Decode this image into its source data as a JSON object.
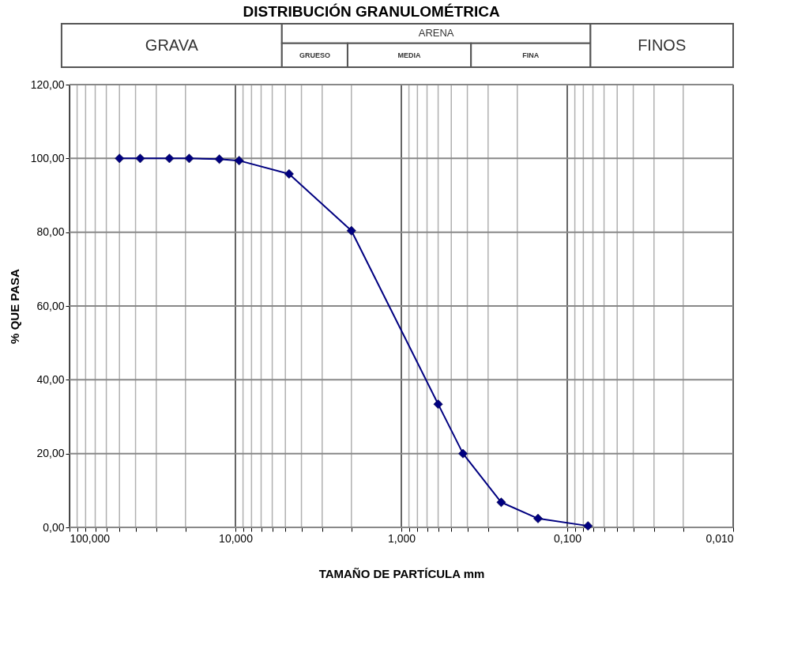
{
  "chart_data": {
    "type": "line",
    "title": "DISTRIBUCIÓN GRANULOMÉTRICA",
    "xlabel": "TAMAÑO DE PARTÍCULA mm",
    "ylabel": "% QUE PASA",
    "annotations": [
      "GRAVA",
      "ARENA",
      "GRUESO",
      "MEDIA",
      "FINA",
      "FINOS"
    ],
    "x": [
      50,
      37.5,
      25,
      19,
      12.5,
      9.5,
      4.75,
      2.0,
      0.6,
      0.425,
      0.25,
      0.15,
      0.075
    ],
    "series": [
      {
        "color": "#000080",
        "values": [
          100,
          100,
          100,
          100,
          99.8,
          99.4,
          95.8,
          80.4,
          33.4,
          20.0,
          6.8,
          2.4,
          0.4
        ]
      }
    ],
    "log": "x",
    "marker": "diamond",
    "line_style": "solid",
    "grid": true,
    "xlim": [
      100,
      0.01
    ],
    "xticks": [
      {
        "value": 100,
        "label": "100,000"
      },
      {
        "value": 90,
        "label": null
      },
      {
        "value": 80,
        "label": null
      },
      {
        "value": 70,
        "label": null
      },
      {
        "value": 60,
        "label": null
      },
      {
        "value": 50,
        "label": null
      },
      {
        "value": 40,
        "label": null
      },
      {
        "value": 30,
        "label": null
      },
      {
        "value": 20,
        "label": null
      },
      {
        "value": 10,
        "label": "10,000"
      },
      {
        "value": 9,
        "label": null
      },
      {
        "value": 8,
        "label": null
      },
      {
        "value": 7,
        "label": null
      },
      {
        "value": 6,
        "label": null
      },
      {
        "value": 5,
        "label": null
      },
      {
        "value": 4,
        "label": null
      },
      {
        "value": 3,
        "label": null
      },
      {
        "value": 2,
        "label": null
      },
      {
        "value": 1,
        "label": "1,000"
      },
      {
        "value": 0.9,
        "label": null
      },
      {
        "value": 0.8,
        "label": null
      },
      {
        "value": 0.7,
        "label": null
      },
      {
        "value": 0.6,
        "label": null
      },
      {
        "value": 0.5,
        "label": null
      },
      {
        "value": 0.4,
        "label": null
      },
      {
        "value": 0.3,
        "label": null
      },
      {
        "value": 0.2,
        "label": null
      },
      {
        "value": 0.1,
        "label": "0,100"
      },
      {
        "value": 0.09,
        "label": null
      },
      {
        "value": 0.08,
        "label": null
      },
      {
        "value": 0.07,
        "label": null
      },
      {
        "value": 0.06,
        "label": null
      },
      {
        "value": 0.05,
        "label": null
      },
      {
        "value": 0.04,
        "label": null
      },
      {
        "value": 0.03,
        "label": null
      },
      {
        "value": 0.02,
        "label": null
      },
      {
        "value": 0.01,
        "label": "0,010"
      }
    ],
    "ylim": [
      0,
      120
    ],
    "yticks": [
      {
        "value": 0,
        "label": "0,00"
      },
      {
        "value": 20,
        "label": "20,00"
      },
      {
        "value": 40,
        "label": "40,00"
      },
      {
        "value": 60,
        "label": "60,00"
      },
      {
        "value": 80,
        "label": "80,00"
      },
      {
        "value": 100,
        "label": "100,00"
      },
      {
        "value": 120,
        "label": "120,00"
      }
    ]
  }
}
